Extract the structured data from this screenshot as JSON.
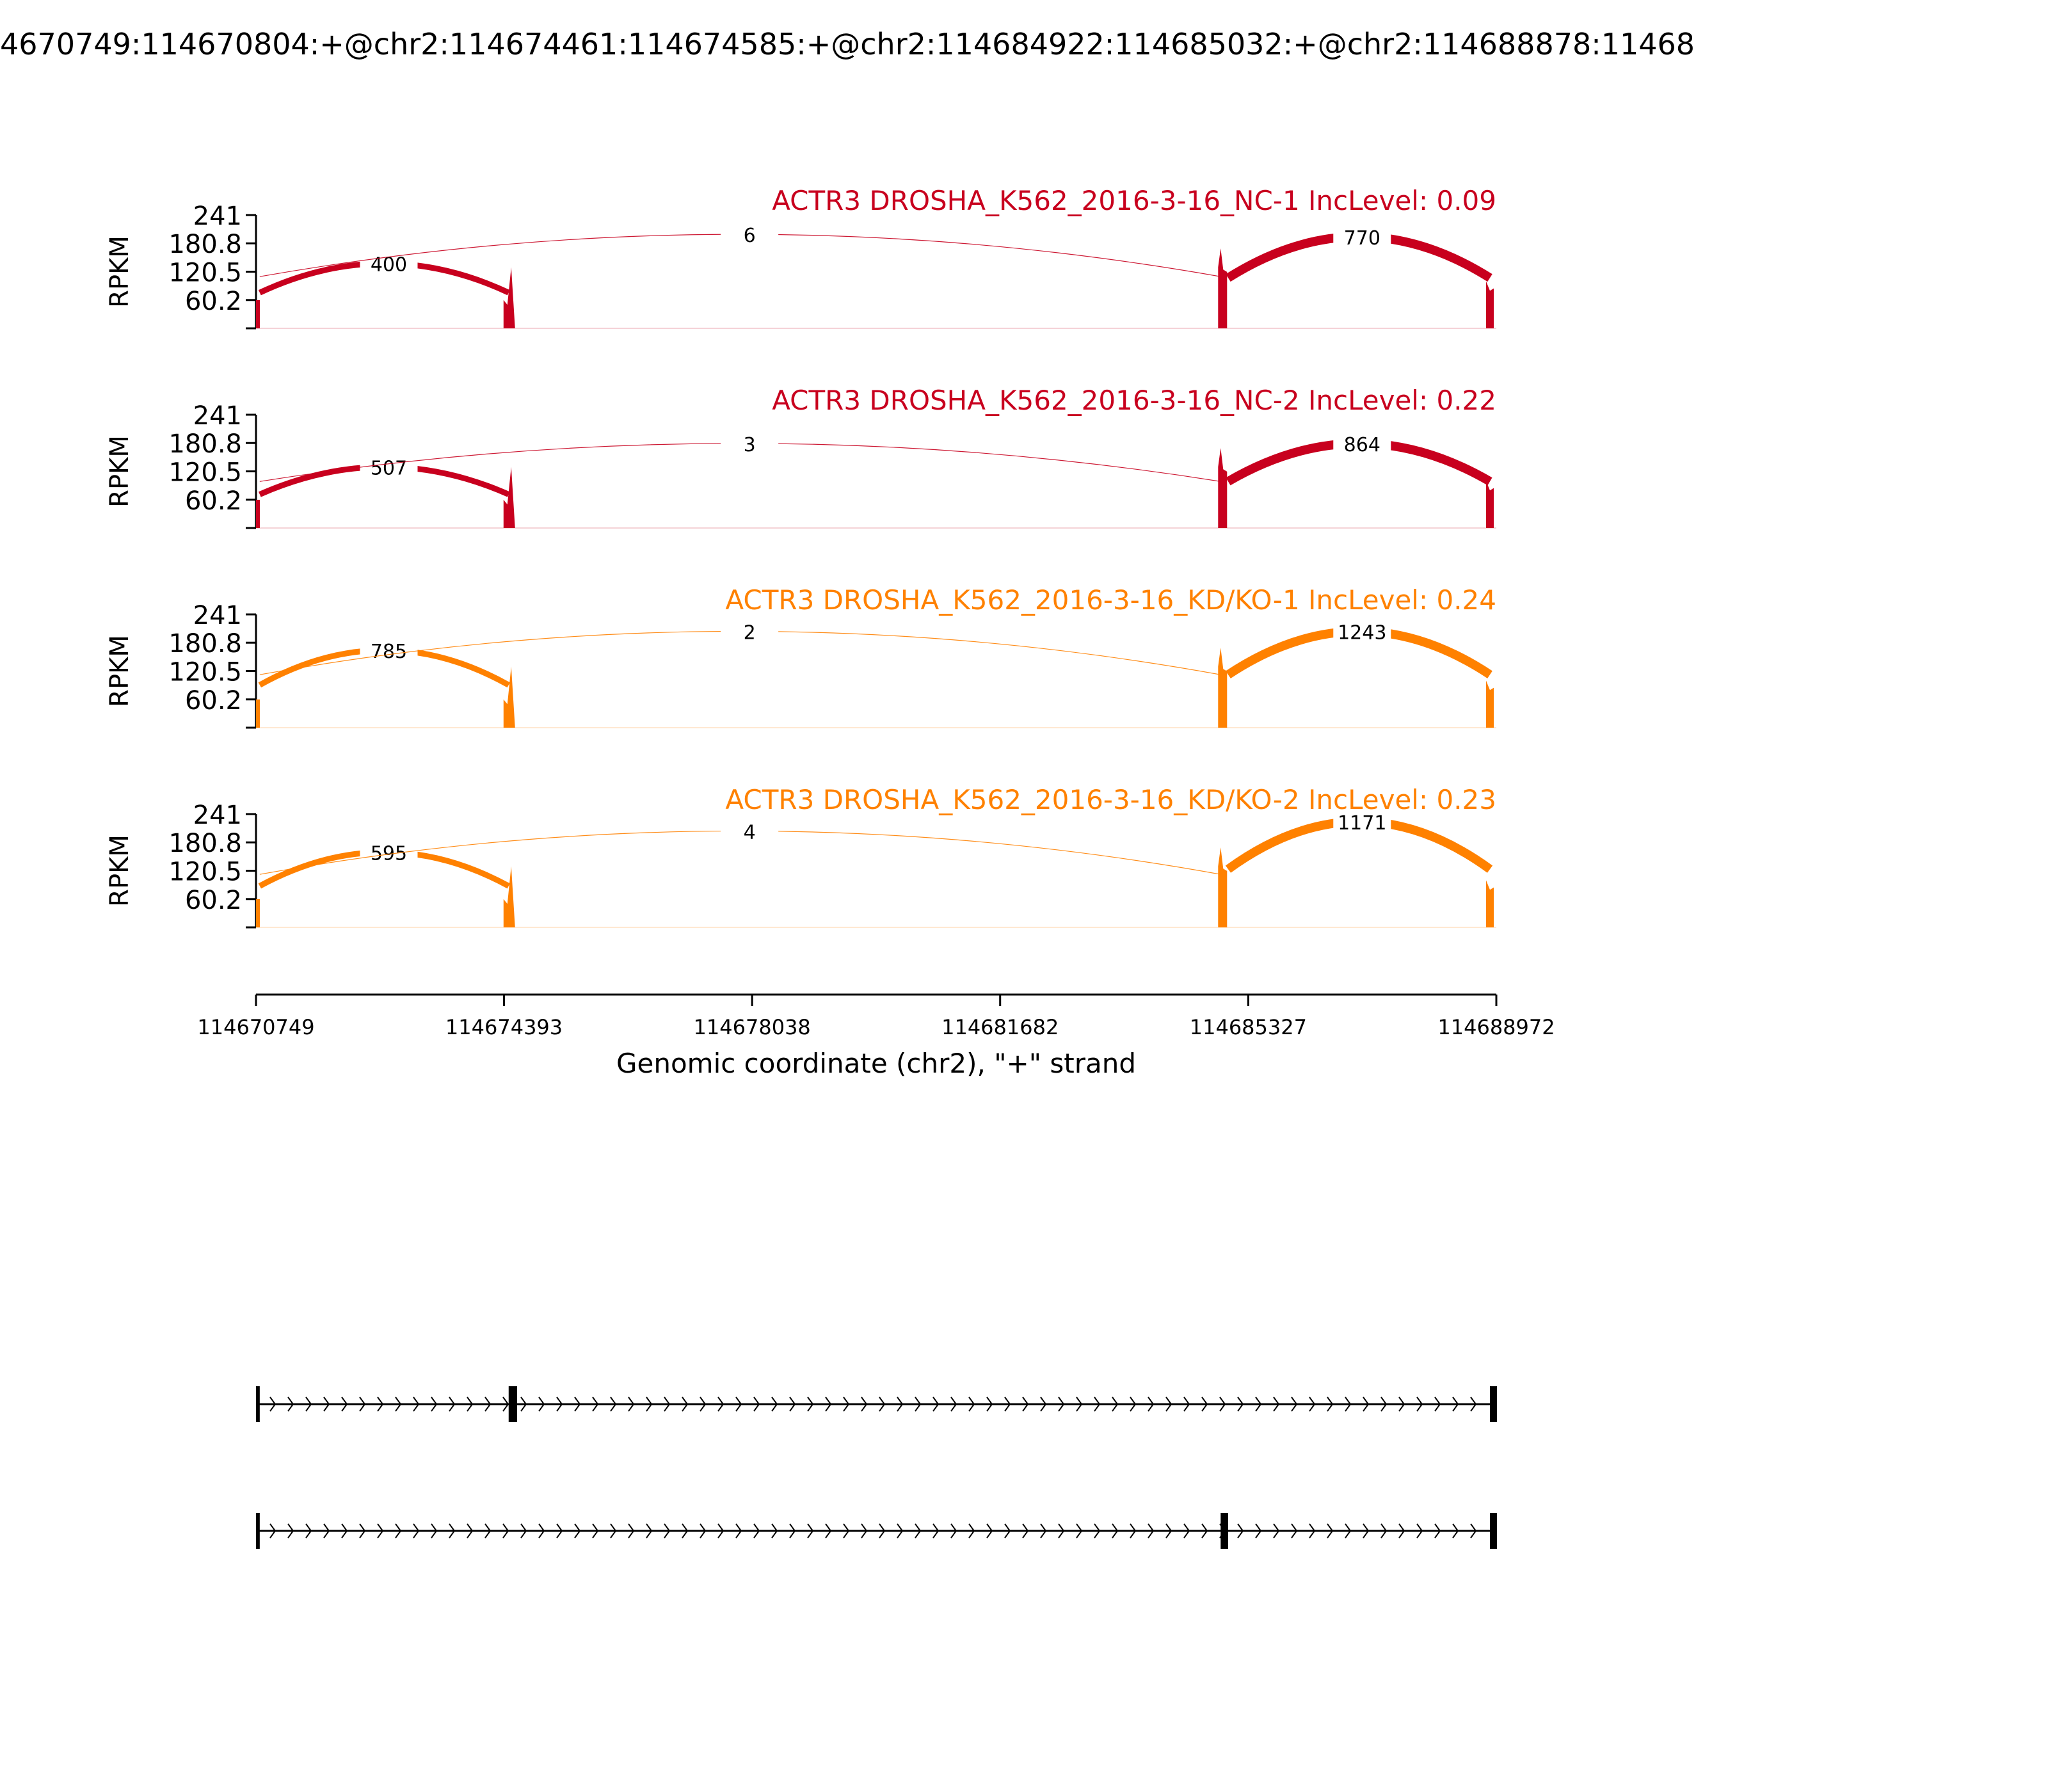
{
  "title": "4670749:114670804:+@chr2:114674461:114674585:+@chr2:114684922:114685032:+@chr2:114688878:11468",
  "chart_data": {
    "type": "sashimi",
    "title": "4670749:114670804:+@chr2:114674461:114674585:+@chr2:114684922:114685032:+@chr2:114688878:11468",
    "xlabel": "Genomic coordinate (chr2), \"+\" strand",
    "ylabel": "RPKM",
    "xlim": [
      114670749,
      114688972
    ],
    "xticks": [
      "114670749",
      "114674393",
      "114678038",
      "114681682",
      "114685327",
      "114688972"
    ],
    "xtick_values": [
      114670749,
      114674393,
      114678038,
      114681682,
      114685327,
      114688972
    ],
    "ylim": [
      0,
      241
    ],
    "yticks": [
      "241",
      "180.8",
      "120.5",
      "60.2"
    ],
    "ytick_values": [
      241,
      180.8,
      120.5,
      60.2
    ],
    "exons": [
      {
        "start": 114670749,
        "end": 114670804
      },
      {
        "start": 114674461,
        "end": 114674585
      },
      {
        "start": 114684922,
        "end": 114685032
      },
      {
        "start": 114688878,
        "end": 114688972
      }
    ],
    "panels": [
      {
        "label": "ACTR3 DROSHA_K562_2016-3-16_NC-1 IncLevel: 0.09",
        "color": "#c8001e",
        "junctions": [
          {
            "from": 114670804,
            "to": 114674461,
            "count": "400",
            "peak": 138
          },
          {
            "from": 114670804,
            "to": 114684922,
            "count": "6",
            "peak": 200
          },
          {
            "from": 114685032,
            "to": 114688878,
            "count": "770",
            "peak": 195
          }
        ]
      },
      {
        "label": "ACTR3 DROSHA_K562_2016-3-16_NC-2 IncLevel: 0.22",
        "color": "#c8001e",
        "junctions": [
          {
            "from": 114670804,
            "to": 114674461,
            "count": "507",
            "peak": 130
          },
          {
            "from": 114670804,
            "to": 114684922,
            "count": "3",
            "peak": 180
          },
          {
            "from": 114685032,
            "to": 114688878,
            "count": "864",
            "peak": 180
          }
        ]
      },
      {
        "label": "ACTR3 DROSHA_K562_2016-3-16_KD/KO-1 IncLevel: 0.24",
        "color": "#ff8100",
        "junctions": [
          {
            "from": 114670804,
            "to": 114674461,
            "count": "785",
            "peak": 165
          },
          {
            "from": 114670804,
            "to": 114684922,
            "count": "2",
            "peak": 205
          },
          {
            "from": 114685032,
            "to": 114688878,
            "count": "1243",
            "peak": 205
          }
        ]
      },
      {
        "label": "ACTR3 DROSHA_K562_2016-3-16_KD/KO-2 IncLevel: 0.23",
        "color": "#ff8100",
        "junctions": [
          {
            "from": 114670804,
            "to": 114674461,
            "count": "595",
            "peak": 160
          },
          {
            "from": 114670804,
            "to": 114684922,
            "count": "4",
            "peak": 205
          },
          {
            "from": 114685032,
            "to": 114688878,
            "count": "1171",
            "peak": 225
          }
        ]
      }
    ],
    "isoforms": [
      {
        "exons": [
          [
            114670749,
            114670804
          ],
          [
            114674461,
            114674585
          ],
          [
            114688878,
            114688972
          ]
        ]
      },
      {
        "exons": [
          [
            114670749,
            114670804
          ],
          [
            114684922,
            114685032
          ],
          [
            114688878,
            114688972
          ]
        ]
      }
    ]
  }
}
